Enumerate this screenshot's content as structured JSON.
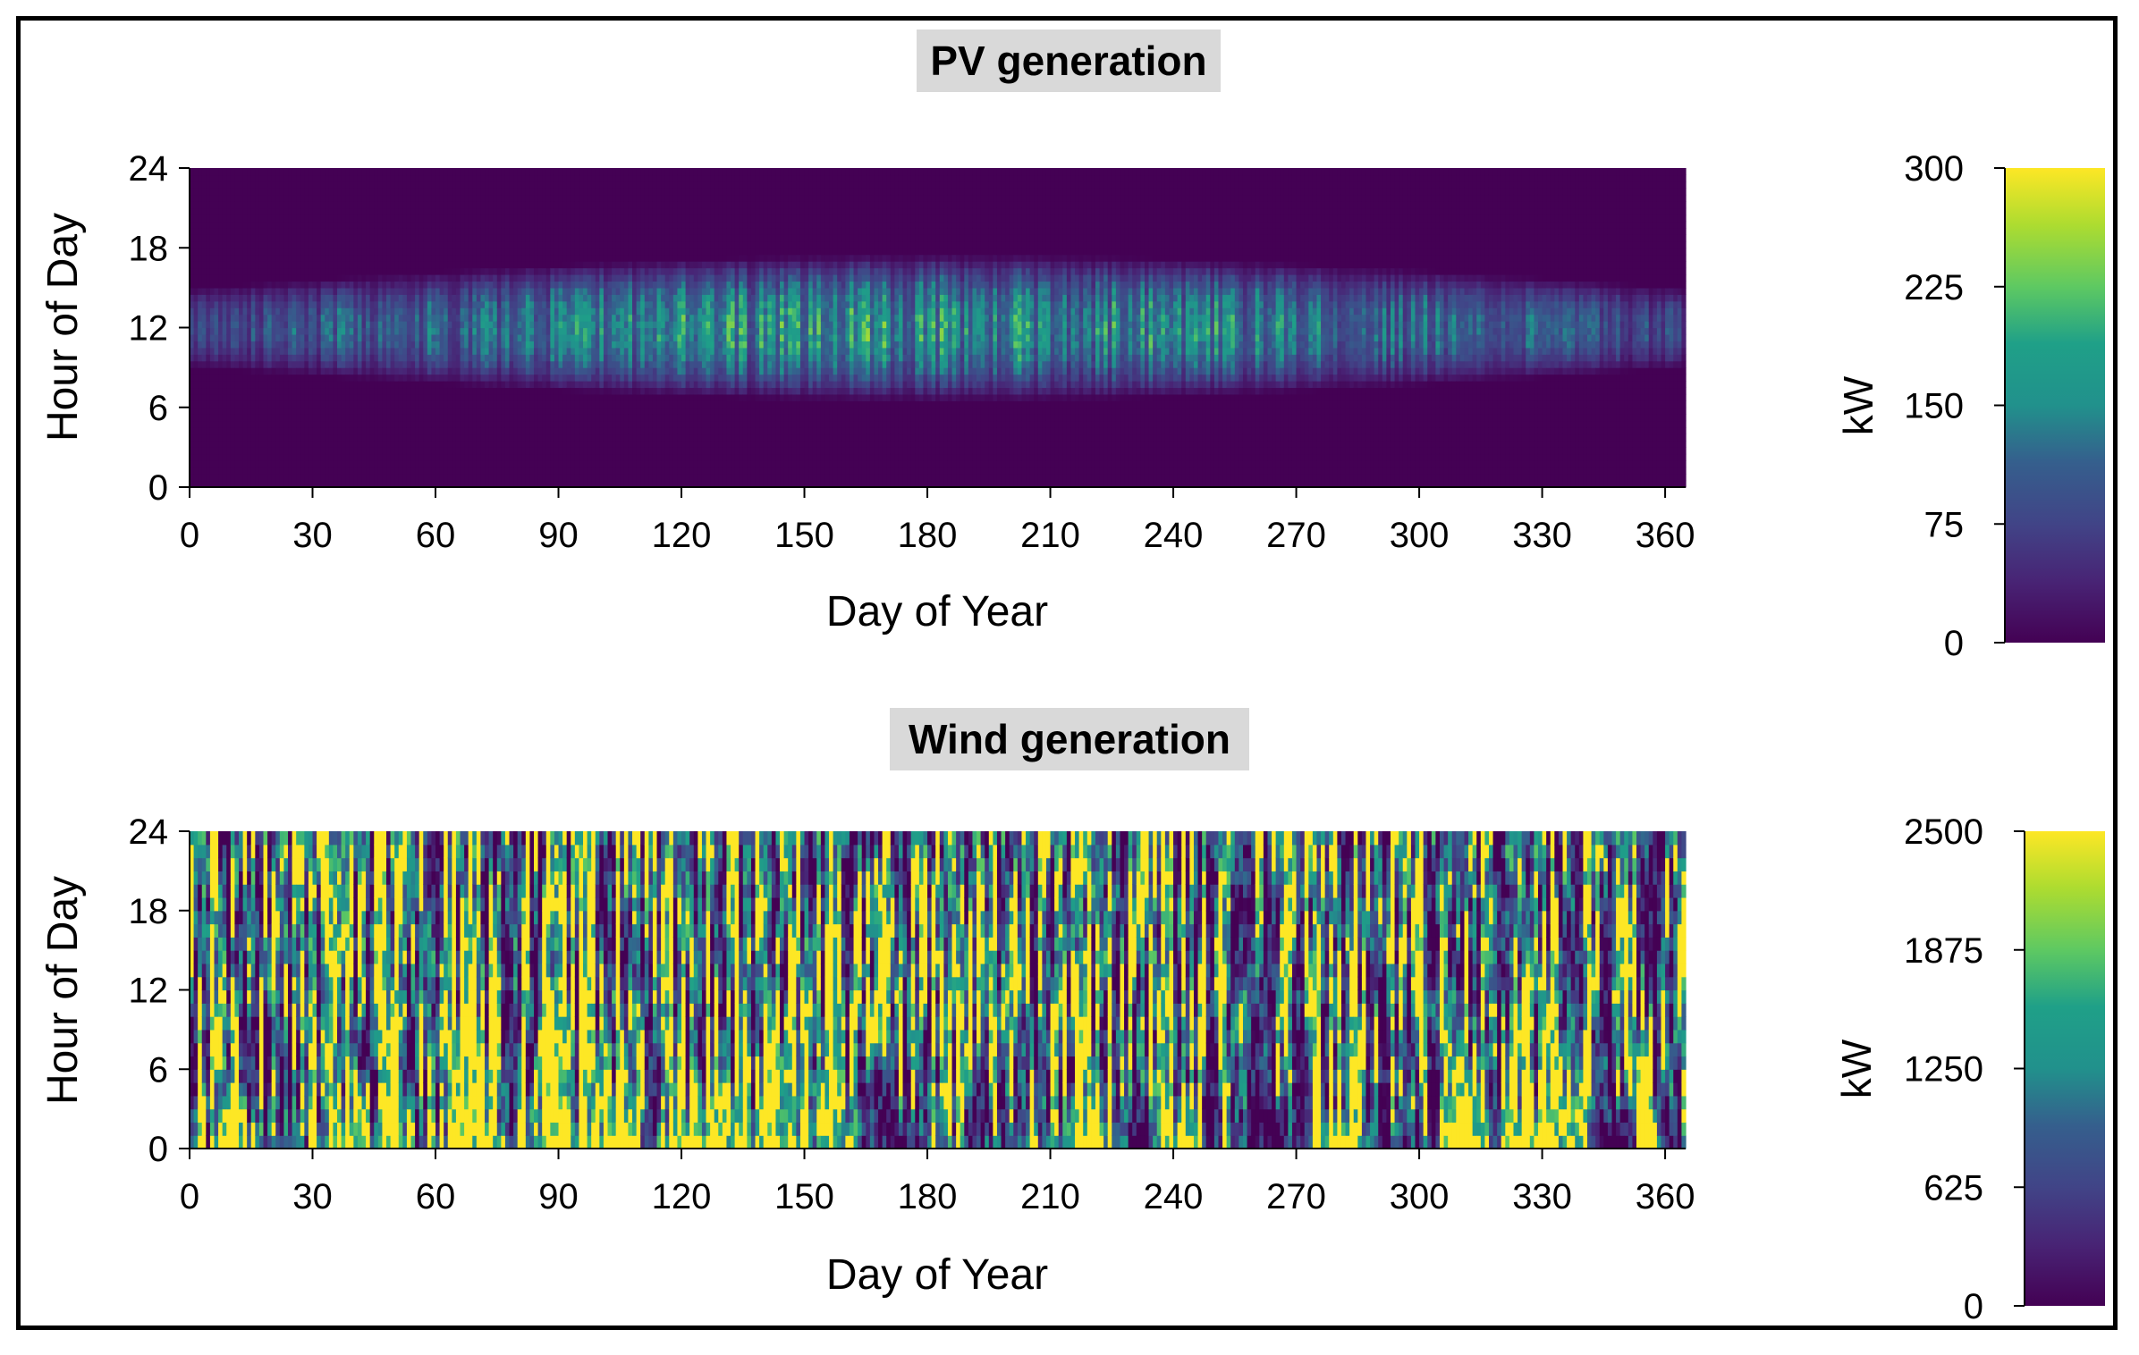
{
  "chart_data": [
    {
      "type": "heatmap",
      "title": "PV generation",
      "xlabel": "Day of Year",
      "ylabel": "Hour of Day",
      "xlim": [
        0,
        365
      ],
      "ylim": [
        0,
        24
      ],
      "x_ticks": [
        0,
        30,
        60,
        90,
        120,
        150,
        180,
        210,
        240,
        270,
        300,
        330,
        360
      ],
      "y_ticks": [
        0,
        6,
        12,
        18,
        24
      ],
      "colorbar": {
        "label": "kW",
        "min": 0,
        "max": 300,
        "ticks": [
          0,
          75,
          150,
          225,
          300
        ],
        "colormap": "viridis"
      },
      "pattern": "Generation only in daylight hours (roughly 07:00–17:00 around day 180, narrowing to about 09:00–15:00 near days 0 and 365); peak intensities around 12:00 reach ~200–280 kW; zero at night."
    },
    {
      "type": "heatmap",
      "title": "Wind generation",
      "xlabel": "Day of Year",
      "ylabel": "Hour of Day",
      "xlim": [
        0,
        365
      ],
      "ylim": [
        0,
        24
      ],
      "x_ticks": [
        0,
        30,
        60,
        90,
        120,
        150,
        180,
        210,
        240,
        270,
        300,
        330,
        360
      ],
      "y_ticks": [
        0,
        6,
        12,
        18,
        24
      ],
      "colorbar": {
        "label": "kW",
        "min": 0,
        "max": 2500,
        "ticks": [
          0,
          625,
          1250,
          1875,
          2500
        ],
        "colormap": "viridis"
      },
      "pattern": "Highly variable across all hours and days, ranging from 0 to 2500 kW with frequent saturation at 2500 kW."
    }
  ]
}
